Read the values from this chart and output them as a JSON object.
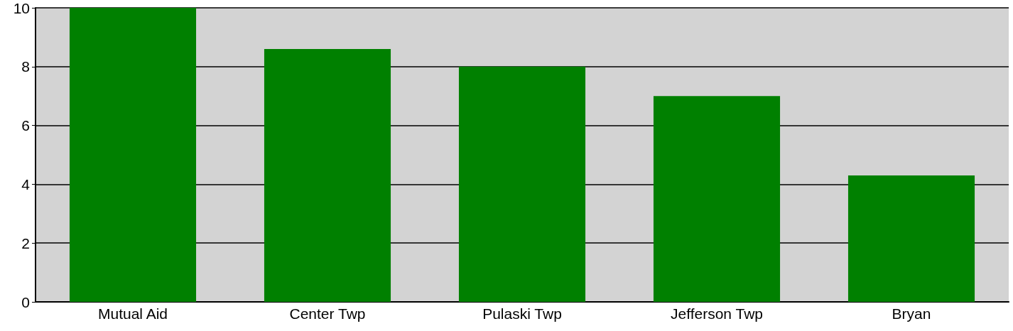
{
  "chart_data": {
    "type": "bar",
    "categories": [
      "Mutual Aid",
      "Center Twp",
      "Pulaski Twp",
      "Jefferson Twp",
      "Bryan"
    ],
    "values": [
      10,
      8.6,
      8.0,
      7.0,
      4.3
    ],
    "color": "#008000",
    "ylim": [
      0,
      10
    ],
    "yticks": [
      0,
      2,
      4,
      6,
      8,
      10
    ],
    "grid": "y"
  }
}
